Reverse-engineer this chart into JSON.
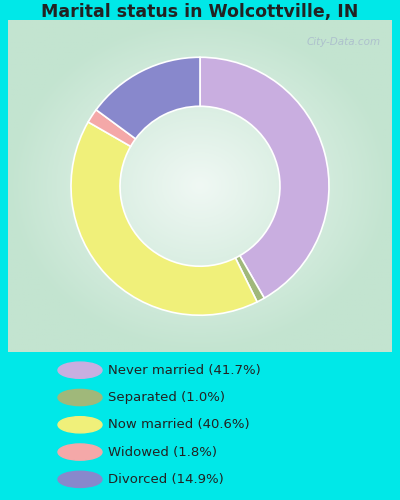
{
  "title": "Marital status in Wolcottville, IN",
  "slices": [
    41.7,
    1.0,
    40.6,
    1.8,
    14.9
  ],
  "labels": [
    "Never married (41.7%)",
    "Separated (1.0%)",
    "Now married (40.6%)",
    "Widowed (1.8%)",
    "Divorced (14.9%)"
  ],
  "colors": [
    "#c9aee0",
    "#a0b87a",
    "#f0f07a",
    "#f4a8a8",
    "#8888cc"
  ],
  "bg_cyan": "#00e8e8",
  "watermark": "City-Data.com",
  "donut_width": 0.38,
  "startangle": 90
}
